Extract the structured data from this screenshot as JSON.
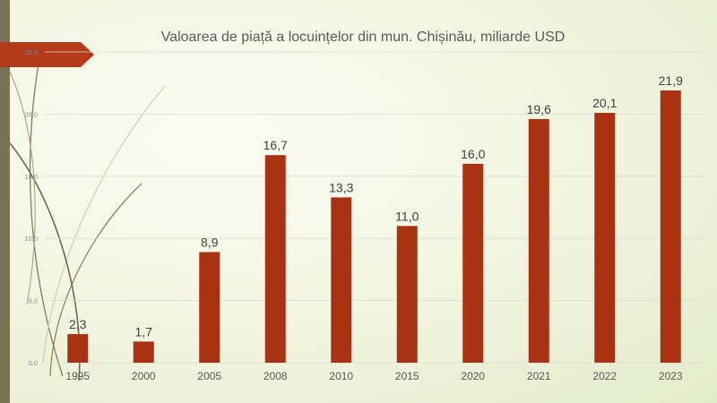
{
  "chart_data": {
    "type": "bar",
    "title": "Valoarea de piață a locuințelor din mun. Chișinău, miliarde USD",
    "categories": [
      "1995",
      "2000",
      "2005",
      "2008",
      "2010",
      "2015",
      "2020",
      "2021",
      "2022",
      "2023"
    ],
    "values": [
      2.3,
      1.7,
      8.9,
      16.7,
      13.3,
      11.0,
      16.0,
      19.6,
      20.1,
      21.9
    ],
    "data_labels": [
      "2,3",
      "1,7",
      "8,9",
      "16,7",
      "13,3",
      "11,0",
      "16,0",
      "19,6",
      "20,1",
      "21,9"
    ],
    "y_ticks": [
      "0,0",
      "5,0",
      "10,0",
      "15,0",
      "20,0",
      "25,0"
    ],
    "ylim": [
      0,
      25
    ],
    "grid": true,
    "legend": "none",
    "bar_color": "#a93213"
  },
  "theme": {
    "side_bar_color": "#7a7153",
    "arrow_color": "#b43a1a",
    "gridline_color": "#dcdcd0"
  }
}
